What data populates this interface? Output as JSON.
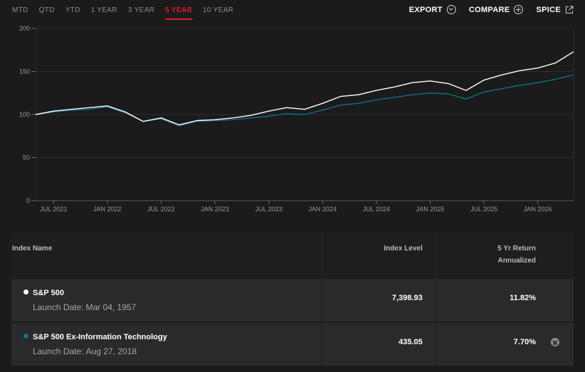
{
  "range_tabs": [
    "MTD",
    "QTD",
    "YTD",
    "1 YEAR",
    "3 YEAR",
    "5 YEAR",
    "10 YEAR"
  ],
  "active_range": "5 YEAR",
  "actions": {
    "export": "EXPORT",
    "compare": "COMPARE",
    "spice": "SPICE"
  },
  "chart_data": {
    "type": "line",
    "title": "",
    "xlabel": "",
    "ylabel": "",
    "ylim": [
      0,
      200
    ],
    "yticks": [
      0,
      50,
      100,
      150,
      200
    ],
    "xlim": [
      "2021-05",
      "2026-05"
    ],
    "xticks": [
      {
        "label": "JUL 2021",
        "date": "2021-07"
      },
      {
        "label": "JAN 2022",
        "date": "2022-01"
      },
      {
        "label": "JUL 2022",
        "date": "2022-07"
      },
      {
        "label": "JAN 2023",
        "date": "2023-01"
      },
      {
        "label": "JUL 2023",
        "date": "2023-07"
      },
      {
        "label": "JAN 2024",
        "date": "2024-01"
      },
      {
        "label": "JUL 2024",
        "date": "2024-07"
      },
      {
        "label": "JAN 2025",
        "date": "2025-01"
      },
      {
        "label": "JUL 2025",
        "date": "2025-07"
      },
      {
        "label": "JAN 2026",
        "date": "2026-01"
      }
    ],
    "grid": true,
    "legend": "none",
    "x": [
      "2021-05",
      "2021-07",
      "2021-09",
      "2021-11",
      "2022-01",
      "2022-03",
      "2022-05",
      "2022-07",
      "2022-09",
      "2022-11",
      "2023-01",
      "2023-03",
      "2023-05",
      "2023-07",
      "2023-09",
      "2023-11",
      "2024-01",
      "2024-03",
      "2024-05",
      "2024-07",
      "2024-09",
      "2024-11",
      "2025-01",
      "2025-03",
      "2025-05",
      "2025-07",
      "2025-09",
      "2025-11",
      "2026-01",
      "2026-03",
      "2026-05"
    ],
    "series": [
      {
        "name": "S&P 500",
        "color": "#ffffff",
        "values": [
          100,
          104,
          106,
          108,
          110,
          103,
          92,
          96,
          88,
          93,
          94,
          96,
          99,
          104,
          108,
          106,
          113,
          121,
          123,
          128,
          132,
          137,
          139,
          136,
          128,
          140,
          146,
          151,
          154,
          160,
          173
        ]
      },
      {
        "name": "S&P 500 Ex-Information Technology",
        "color": "#0f6e8a",
        "values": [
          100,
          103,
          105,
          106,
          109,
          102,
          92,
          95,
          87,
          92,
          93,
          94,
          96,
          98,
          101,
          100,
          105,
          111,
          113,
          117,
          120,
          123,
          125,
          124,
          118,
          126,
          130,
          134,
          137,
          141,
          146
        ]
      }
    ]
  },
  "table": {
    "headers": {
      "name": "Index Name",
      "level": "Index Level",
      "return_line1": "5 Yr Return",
      "return_line2": "Annualized"
    },
    "launch_label": "Launch Date:",
    "rows": [
      {
        "name": "S&P 500",
        "launch": "Mar 04, 1957",
        "level": "7,398.93",
        "return": "11.82%",
        "dot_color": "#ffffff"
      },
      {
        "name": "S&P 500 Ex-Information Technology",
        "launch": "Aug 27, 2018",
        "level": "435.05",
        "return": "7.70%",
        "dot_color": "#0f6e8a"
      }
    ]
  }
}
